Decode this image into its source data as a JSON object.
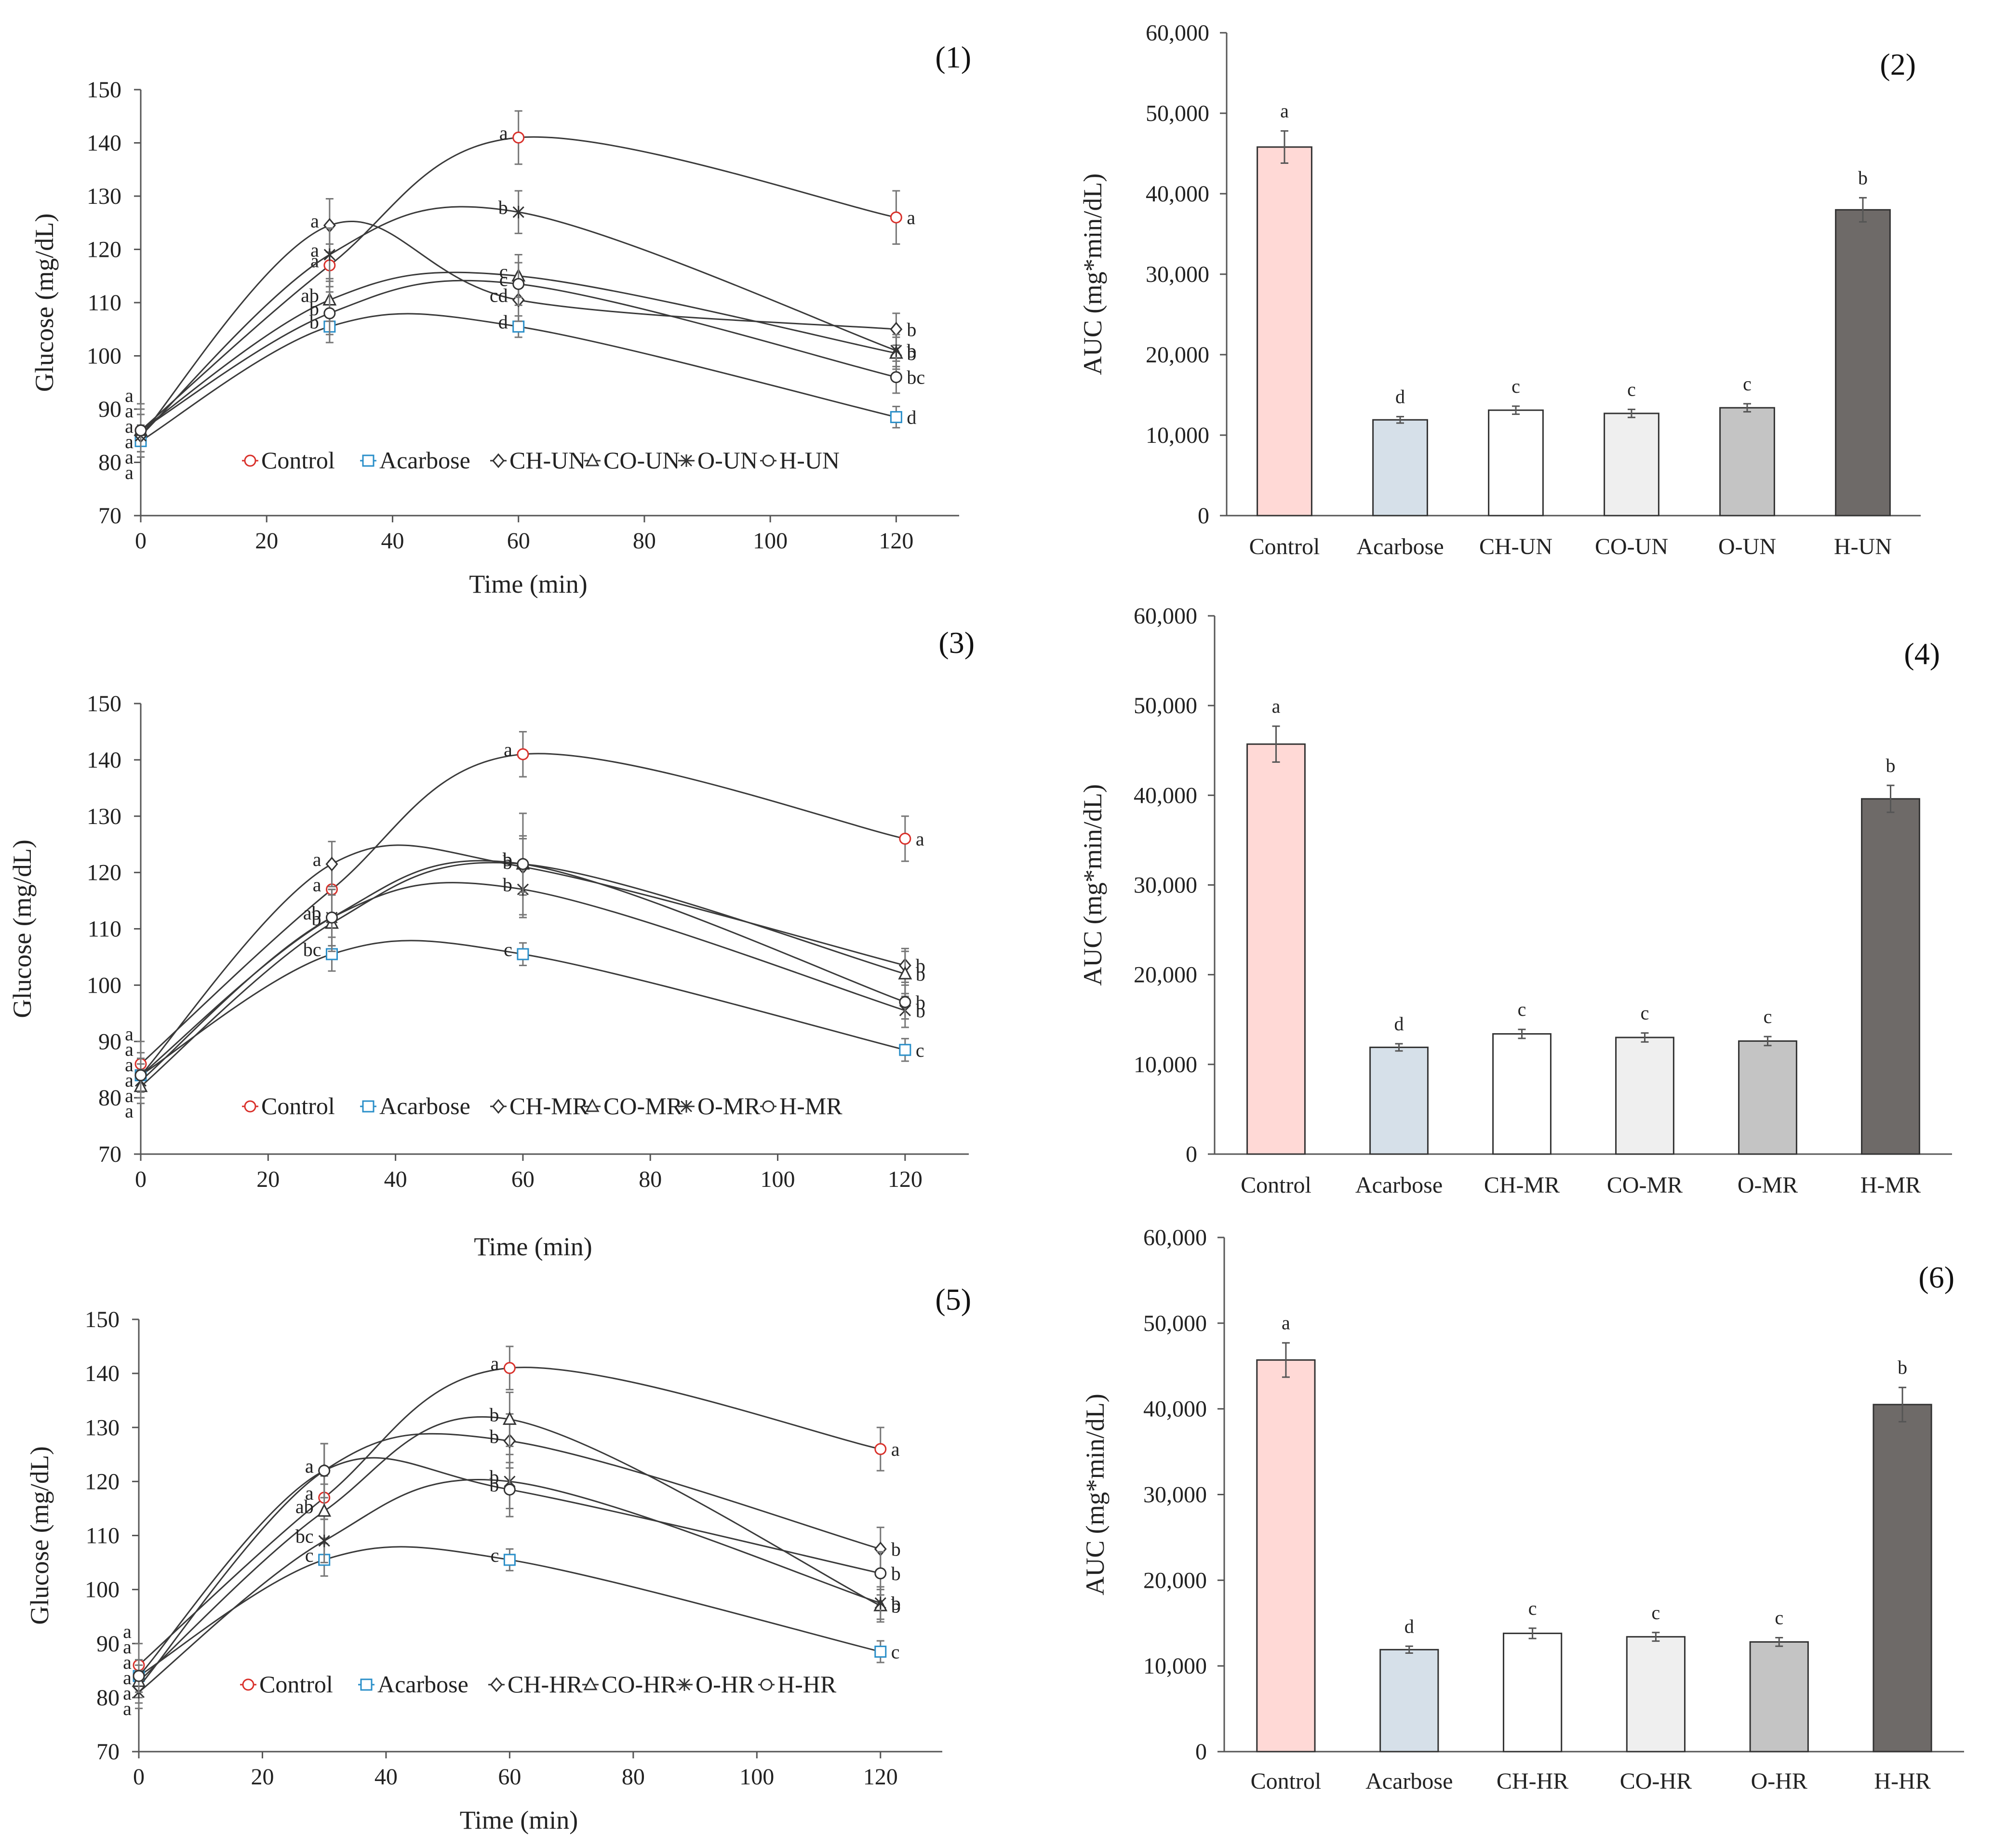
{
  "colors": {
    "control": "#d9312b",
    "acarbose": "#2a8fc9",
    "line": "#333333",
    "bars": [
      "#ffd9d6",
      "#d6e0e9",
      "#ffffff",
      "#efefef",
      "#c4c4c4",
      "#6e6a68"
    ]
  },
  "chart_data": [
    {
      "panel": "(1)",
      "type": "line",
      "xlabel": "Time (min)",
      "ylabel": "Glucose (mg/dL)",
      "xlim": [
        0,
        130
      ],
      "ylim": [
        70,
        150
      ],
      "xticks": [
        0,
        20,
        40,
        60,
        80,
        100,
        120
      ],
      "yticks": [
        70,
        80,
        90,
        100,
        110,
        120,
        130,
        140,
        150
      ],
      "x": [
        0,
        30,
        60,
        120
      ],
      "series": [
        {
          "name": "Control",
          "marker": "circle",
          "values": [
            86,
            117,
            141,
            126
          ],
          "err": [
            5,
            4,
            5,
            5
          ],
          "labels": [
            "a",
            "a",
            "a",
            "a"
          ]
        },
        {
          "name": "Acarbose",
          "marker": "square",
          "values": [
            84,
            105.5,
            105.5,
            88.5
          ],
          "err": [
            3,
            3,
            2,
            2
          ],
          "labels": [
            "a",
            "b",
            "d",
            "d"
          ]
        },
        {
          "name": "CH-UN",
          "marker": "diamond",
          "values": [
            85,
            124.5,
            110.5,
            105
          ],
          "err": [
            4,
            5,
            4,
            3
          ],
          "labels": [
            "a",
            "a",
            "cd",
            "b"
          ]
        },
        {
          "name": "CO-UN",
          "marker": "triangle",
          "values": [
            86,
            110.5,
            115,
            100.5
          ],
          "err": [
            4,
            4,
            4,
            3
          ],
          "labels": [
            "a",
            "ab",
            "c",
            "b"
          ]
        },
        {
          "name": "O-UN",
          "marker": "star",
          "values": [
            85,
            119,
            127,
            101
          ],
          "err": [
            4,
            5,
            4,
            3
          ],
          "labels": [
            "a",
            "a",
            "b",
            "b"
          ]
        },
        {
          "name": "H-UN",
          "marker": "circle-open",
          "values": [
            86,
            108,
            113.5,
            96
          ],
          "err": [
            4,
            4,
            4,
            3
          ],
          "labels": [
            "a",
            "b",
            "c",
            "bc"
          ]
        }
      ]
    },
    {
      "panel": "(2)",
      "type": "bar",
      "ylabel": "AUC (mg*min/dL)",
      "ylim": [
        0,
        60000
      ],
      "yticks": [
        "0",
        "10,000",
        "20,000",
        "30,000",
        "40,000",
        "50,000",
        "60,000"
      ],
      "categories": [
        "Control",
        "Acarbose",
        "CH-UN",
        "CO-UN",
        "O-UN",
        "H-UN"
      ],
      "values": [
        45800,
        11900,
        13100,
        12700,
        13400,
        38000
      ],
      "err": [
        2000,
        400,
        500,
        500,
        500,
        1500
      ],
      "labels": [
        "a",
        "d",
        "c",
        "c",
        "c",
        "b"
      ]
    },
    {
      "panel": "(3)",
      "type": "line",
      "xlabel": "Time (min)",
      "ylabel": "Glucose (mg/dL)",
      "xlim": [
        0,
        130
      ],
      "ylim": [
        70,
        150
      ],
      "xticks": [
        0,
        20,
        40,
        60,
        80,
        100,
        120
      ],
      "yticks": [
        70,
        80,
        90,
        100,
        110,
        120,
        130,
        140,
        150
      ],
      "x": [
        0,
        30,
        60,
        120
      ],
      "series": [
        {
          "name": "Control",
          "marker": "circle",
          "values": [
            86,
            117,
            141,
            126
          ],
          "err": [
            4,
            5,
            4,
            4
          ],
          "labels": [
            "a",
            "a",
            "a",
            "a"
          ]
        },
        {
          "name": "Acarbose",
          "marker": "square",
          "values": [
            84,
            105.5,
            105.5,
            88.5
          ],
          "err": [
            3,
            3,
            2,
            2
          ],
          "labels": [
            "a",
            "bc",
            "c",
            "c"
          ]
        },
        {
          "name": "CH-MR",
          "marker": "diamond",
          "values": [
            84,
            121.5,
            121,
            103.5
          ],
          "err": [
            4,
            4,
            5,
            3
          ],
          "labels": [
            "a",
            "a",
            "b",
            "b"
          ]
        },
        {
          "name": "CO-MR",
          "marker": "triangle",
          "values": [
            82,
            111,
            121.5,
            102
          ],
          "err": [
            3,
            5,
            9,
            4
          ],
          "labels": [
            "a",
            "b",
            "b",
            "b"
          ]
        },
        {
          "name": "O-MR",
          "marker": "star",
          "values": [
            83,
            112,
            117,
            95.5
          ],
          "err": [
            3,
            5,
            5,
            3
          ],
          "labels": [
            "a",
            "b",
            "b",
            "b"
          ]
        },
        {
          "name": "H-MR",
          "marker": "circle-open",
          "values": [
            84,
            112,
            121.5,
            97
          ],
          "err": [
            3,
            5,
            5,
            3
          ],
          "labels": [
            "a",
            "ab",
            "b",
            "b"
          ]
        }
      ]
    },
    {
      "panel": "(4)",
      "type": "bar",
      "ylabel": "AUC (mg*min/dL)",
      "ylim": [
        0,
        60000
      ],
      "yticks": [
        "0",
        "10,000",
        "20,000",
        "30,000",
        "40,000",
        "50,000",
        "60,000"
      ],
      "categories": [
        "Control",
        "Acarbose",
        "CH-MR",
        "CO-MR",
        "O-MR",
        "H-MR"
      ],
      "values": [
        45700,
        11900,
        13400,
        13000,
        12600,
        39600
      ],
      "err": [
        2000,
        400,
        500,
        500,
        500,
        1500
      ],
      "labels": [
        "a",
        "d",
        "c",
        "c",
        "c",
        "b"
      ]
    },
    {
      "panel": "(5)",
      "type": "line",
      "xlabel": "Time (min)",
      "ylabel": "Glucose (mg/dL)",
      "xlim": [
        0,
        130
      ],
      "ylim": [
        70,
        150
      ],
      "xticks": [
        0,
        20,
        40,
        60,
        80,
        100,
        120
      ],
      "yticks": [
        70,
        80,
        90,
        100,
        110,
        120,
        130,
        140,
        150
      ],
      "x": [
        0,
        30,
        60,
        120
      ],
      "series": [
        {
          "name": "Control",
          "marker": "circle",
          "values": [
            86,
            117,
            141,
            126
          ],
          "err": [
            4,
            4,
            4,
            4
          ],
          "labels": [
            "a",
            "a",
            "a",
            "a"
          ]
        },
        {
          "name": "Acarbose",
          "marker": "square",
          "values": [
            84,
            105.5,
            105.5,
            88.5
          ],
          "err": [
            3,
            3,
            2,
            2
          ],
          "labels": [
            "a",
            "c",
            "c",
            "c"
          ]
        },
        {
          "name": "CH-HR",
          "marker": "diamond",
          "values": [
            82,
            122,
            127.5,
            107.5
          ],
          "err": [
            3,
            5,
            5,
            4
          ],
          "labels": [
            "a",
            "a",
            "b",
            "b"
          ]
        },
        {
          "name": "CO-HR",
          "marker": "triangle",
          "values": [
            83,
            114.5,
            131.5,
            97
          ],
          "err": [
            3,
            5,
            5,
            3
          ],
          "labels": [
            "a",
            "ab",
            "b",
            "b"
          ]
        },
        {
          "name": "O-HR",
          "marker": "star",
          "values": [
            81,
            109,
            120,
            97.5
          ],
          "err": [
            3,
            4,
            5,
            3
          ],
          "labels": [
            "a",
            "bc",
            "b",
            "b"
          ]
        },
        {
          "name": "H-HR",
          "marker": "circle-open",
          "values": [
            84,
            122,
            118.5,
            103
          ],
          "err": [
            3,
            5,
            5,
            4
          ],
          "labels": [
            "a",
            "a",
            "b",
            "b"
          ]
        }
      ]
    },
    {
      "panel": "(6)",
      "type": "bar",
      "ylabel": "AUC (mg*min/dL)",
      "ylim": [
        0,
        60000
      ],
      "yticks": [
        "0",
        "10,000",
        "20,000",
        "30,000",
        "40,000",
        "50,000",
        "60,000"
      ],
      "categories": [
        "Control",
        "Acarbose",
        "CH-HR",
        "CO-HR",
        "O-HR",
        "H-HR"
      ],
      "values": [
        45700,
        11900,
        13800,
        13400,
        12800,
        40500
      ],
      "err": [
        2000,
        400,
        600,
        500,
        500,
        2000
      ],
      "labels": [
        "a",
        "d",
        "c",
        "c",
        "c",
        "b"
      ]
    }
  ]
}
